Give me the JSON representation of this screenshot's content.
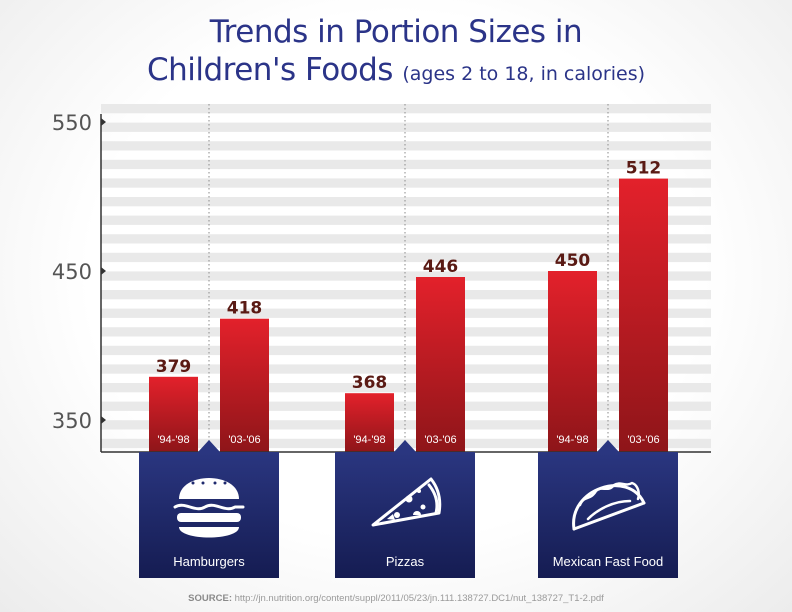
{
  "chart_data": {
    "type": "bar",
    "title_line1": "Trends in Portion Sizes in",
    "title_line2": "Children's Foods",
    "subtitle": "(ages 2 to 18, in calories)",
    "y_ticks": [
      350,
      450,
      550
    ],
    "ylim": [
      330,
      560
    ],
    "period_labels": [
      "'94-'98",
      "'03-'06"
    ],
    "groups": [
      {
        "name": "Hamburgers",
        "icon": "hamburger-icon",
        "values": [
          379,
          418
        ],
        "labels": [
          "379",
          "418"
        ]
      },
      {
        "name": "Pizzas",
        "icon": "pizza-icon",
        "values": [
          368,
          446
        ],
        "labels": [
          "368",
          "446"
        ]
      },
      {
        "name": "Mexican Fast Food",
        "icon": "taco-icon",
        "values": [
          450,
          512
        ],
        "labels": [
          "450",
          "512"
        ]
      }
    ]
  },
  "source_label": "SOURCE:",
  "source_url": "http://jn.nutrition.org/content/suppl/2011/05/23/jn.111.138727.DC1/nut_138727_T1-2.pdf",
  "colors": {
    "navy": "#1f2a6e",
    "red_top": "#e3212b",
    "red_bottom": "#8e1519",
    "label": "#5a1a14",
    "axis": "#333333"
  }
}
